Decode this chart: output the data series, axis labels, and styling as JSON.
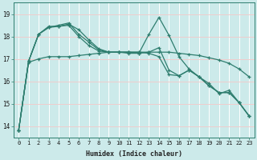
{
  "title": "",
  "xlabel": "Humidex (Indice chaleur)",
  "ylabel": "",
  "background_color": "#cceaea",
  "grid_color": "#b0d8d8",
  "line_color": "#2e7d6e",
  "x_ticks": [
    0,
    1,
    2,
    3,
    4,
    5,
    6,
    7,
    8,
    9,
    10,
    11,
    12,
    13,
    14,
    15,
    16,
    17,
    18,
    19,
    20,
    21,
    22,
    23
  ],
  "y_ticks": [
    14,
    15,
    16,
    17,
    18,
    19
  ],
  "ylim": [
    13.5,
    19.5
  ],
  "xlim": [
    -0.5,
    23.5
  ],
  "series": [
    [
      13.8,
      16.9,
      18.1,
      18.45,
      18.45,
      18.55,
      18.3,
      17.85,
      17.45,
      17.3,
      17.3,
      17.25,
      17.25,
      18.1,
      18.85,
      18.05,
      17.1,
      16.55,
      16.2,
      15.9,
      15.45,
      15.6,
      15.05,
      14.45
    ],
    [
      13.8,
      16.9,
      18.1,
      18.4,
      18.5,
      18.6,
      18.1,
      17.75,
      17.4,
      17.3,
      17.3,
      17.3,
      17.25,
      17.3,
      17.5,
      16.5,
      16.25,
      16.5,
      16.2,
      15.8,
      15.5,
      15.5,
      15.05,
      14.45
    ],
    [
      13.8,
      16.9,
      18.1,
      18.4,
      18.45,
      18.5,
      18.0,
      17.6,
      17.35,
      17.3,
      17.3,
      17.3,
      17.3,
      17.25,
      17.1,
      16.3,
      16.25,
      16.5,
      16.2,
      15.8,
      15.5,
      15.5,
      15.05,
      14.45
    ],
    [
      13.8,
      16.85,
      17.0,
      17.1,
      17.1,
      17.1,
      17.15,
      17.2,
      17.25,
      17.3,
      17.3,
      17.3,
      17.3,
      17.3,
      17.3,
      17.3,
      17.25,
      17.2,
      17.15,
      17.05,
      16.95,
      16.8,
      16.55,
      16.2
    ]
  ]
}
